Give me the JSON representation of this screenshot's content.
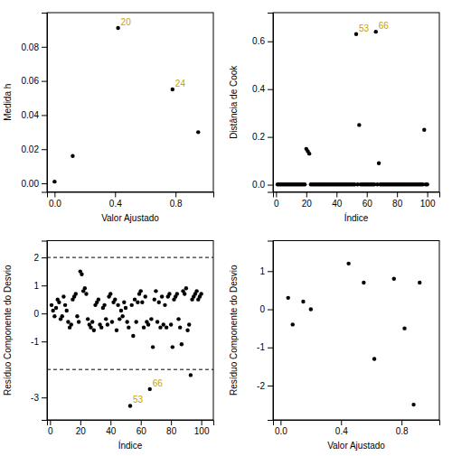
{
  "chart_data": [
    {
      "type": "scatter",
      "xlabel": "Valor Ajustado",
      "ylabel": "Medida h",
      "xlim": [
        -0.05,
        1.05
      ],
      "ylim": [
        -0.005,
        0.1
      ],
      "xticks": [
        {
          "value": 0.0,
          "label": "0.0"
        },
        0.4,
        0.8
      ],
      "yticks": [
        {
          "value": 0.0,
          "label": "0.00"
        },
        0.02,
        0.04,
        0.06,
        0.08
      ],
      "color": "#000000",
      "x": [
        0.0,
        0.12,
        0.42,
        0.78,
        0.95
      ],
      "values": [
        0.001,
        0.016,
        0.091,
        0.055,
        0.03
      ],
      "annotations": [
        {
          "text": "20",
          "x": 0.42,
          "y": 0.091,
          "color": "#C8A000"
        },
        {
          "text": "24",
          "x": 0.78,
          "y": 0.055,
          "color": "#C8A000"
        }
      ]
    },
    {
      "type": "scatter",
      "xlabel": "Índice",
      "ylabel": "Distância de Cook",
      "xlim": [
        -2,
        108
      ],
      "ylim": [
        -0.03,
        0.72
      ],
      "xticks": [
        0,
        20,
        40,
        60,
        80,
        100
      ],
      "yticks": [
        {
          "value": 0.0,
          "label": "0.0"
        },
        0.2,
        0.4,
        0.6
      ],
      "color": "#000000",
      "x": [
        1,
        2,
        3,
        4,
        5,
        6,
        7,
        8,
        9,
        10,
        11,
        12,
        13,
        14,
        15,
        16,
        17,
        18,
        19,
        20,
        21,
        22,
        23,
        24,
        25,
        26,
        27,
        28,
        29,
        30,
        31,
        32,
        33,
        34,
        35,
        36,
        37,
        38,
        39,
        40,
        41,
        42,
        43,
        44,
        45,
        46,
        47,
        48,
        49,
        50,
        51,
        52,
        53,
        54,
        55,
        56,
        57,
        58,
        59,
        60,
        61,
        62,
        63,
        64,
        65,
        66,
        67,
        68,
        69,
        70,
        71,
        72,
        73,
        74,
        75,
        76,
        77,
        78,
        79,
        80,
        81,
        82,
        83,
        84,
        85,
        86,
        87,
        88,
        89,
        90,
        91,
        92,
        93,
        94,
        95,
        96,
        97,
        98,
        99,
        100
      ],
      "values": [
        0.001,
        0.001,
        0.001,
        0.001,
        0.001,
        0.001,
        0.001,
        0.001,
        0.001,
        0.001,
        0.001,
        0.001,
        0.001,
        0.001,
        0.001,
        0.001,
        0.001,
        0.001,
        0.001,
        0.15,
        0.14,
        0.13,
        0.001,
        0.001,
        0.001,
        0.001,
        0.001,
        0.001,
        0.001,
        0.001,
        0.001,
        0.001,
        0.001,
        0.001,
        0.001,
        0.001,
        0.001,
        0.001,
        0.001,
        0.001,
        0.001,
        0.001,
        0.001,
        0.001,
        0.001,
        0.001,
        0.001,
        0.001,
        0.001,
        0.001,
        0.001,
        0.001,
        0.63,
        0.001,
        0.25,
        0.001,
        0.001,
        0.001,
        0.001,
        0.001,
        0.001,
        0.001,
        0.001,
        0.001,
        0.001,
        0.64,
        0.001,
        0.09,
        0.001,
        0.001,
        0.001,
        0.001,
        0.001,
        0.001,
        0.001,
        0.001,
        0.001,
        0.001,
        0.001,
        0.001,
        0.001,
        0.001,
        0.001,
        0.001,
        0.001,
        0.001,
        0.001,
        0.001,
        0.001,
        0.001,
        0.001,
        0.001,
        0.001,
        0.001,
        0.001,
        0.001,
        0.001,
        0.23,
        0.001,
        0.001
      ],
      "annotations": [
        {
          "text": "53",
          "x": 53,
          "y": 0.63,
          "color": "#C8A000"
        },
        {
          "text": "66",
          "x": 66,
          "y": 0.64,
          "color": "#C8A000"
        }
      ]
    },
    {
      "type": "scatter",
      "xlabel": "Índice",
      "ylabel": "Resíduo Componente do Desvio",
      "xlim": [
        -2,
        108
      ],
      "ylim": [
        -3.8,
        2.6
      ],
      "xticks": [
        0,
        20,
        40,
        60,
        80,
        100
      ],
      "yticks": [
        -3,
        -1,
        0,
        1,
        2
      ],
      "color": "#000000",
      "hlines": [
        2.0,
        -2.0
      ],
      "x": [
        1,
        2,
        3,
        4,
        5,
        6,
        7,
        8,
        9,
        10,
        11,
        12,
        13,
        14,
        15,
        16,
        17,
        18,
        19,
        20,
        21,
        22,
        23,
        24,
        25,
        26,
        27,
        28,
        29,
        30,
        31,
        32,
        33,
        34,
        35,
        36,
        37,
        38,
        39,
        40,
        41,
        42,
        43,
        44,
        45,
        46,
        47,
        48,
        49,
        50,
        51,
        52,
        53,
        54,
        55,
        56,
        57,
        58,
        59,
        60,
        61,
        62,
        63,
        64,
        65,
        66,
        67,
        68,
        69,
        70,
        71,
        72,
        73,
        74,
        75,
        76,
        77,
        78,
        79,
        80,
        81,
        82,
        83,
        84,
        85,
        86,
        87,
        88,
        89,
        90,
        91,
        92,
        93,
        94,
        95,
        96,
        97,
        98,
        99,
        100
      ],
      "values": [
        0.3,
        0.1,
        -0.1,
        0.2,
        0.5,
        0.4,
        -0.2,
        -0.1,
        0.6,
        0.3,
        0.1,
        -0.3,
        -0.5,
        -0.4,
        0.5,
        0.6,
        0.7,
        -0.1,
        -0.3,
        1.5,
        1.4,
        0.8,
        0.9,
        0.7,
        -0.2,
        -0.4,
        -0.5,
        -0.3,
        -0.6,
        0.3,
        0.4,
        0.5,
        -0.4,
        -0.5,
        0.2,
        0.3,
        -0.2,
        -0.4,
        0.6,
        0.7,
        -0.3,
        0.4,
        0.5,
        -0.6,
        0.3,
        -0.2,
        0.1,
        -0.1,
        0.4,
        0.2,
        -0.3,
        -0.5,
        -3.3,
        0.3,
        -0.8,
        0.5,
        -0.3,
        0.4,
        0.7,
        0.8,
        0.4,
        -0.5,
        0.6,
        -0.3,
        -0.4,
        -2.7,
        -0.2,
        -1.2,
        0.5,
        0.8,
        -0.3,
        0.4,
        -0.5,
        0.6,
        -0.4,
        0.3,
        -0.5,
        0.6,
        0.7,
        -0.4,
        -1.2,
        0.5,
        0.6,
        0.7,
        -0.2,
        -0.5,
        -1.1,
        0.8,
        0.7,
        0.9,
        -0.6,
        -0.4,
        -2.2,
        0.5,
        0.6,
        0.7,
        0.8,
        0.5,
        0.6,
        0.7
      ],
      "annotations": [
        {
          "text": "53",
          "x": 53,
          "y": -3.3,
          "color": "#C8A000"
        },
        {
          "text": "66",
          "x": 66,
          "y": -2.7,
          "color": "#C8A000"
        }
      ]
    },
    {
      "type": "scatter",
      "xlabel": "Valor Ajustado",
      "ylabel": "Resíduo Componente do Desvio",
      "xlim": [
        -0.05,
        1.05
      ],
      "ylim": [
        -2.9,
        1.8
      ],
      "xticks": [
        {
          "value": 0.0,
          "label": "0.0"
        },
        0.4,
        0.8
      ],
      "yticks": [
        -2,
        -1,
        0,
        1
      ],
      "color": "#000000",
      "x": [
        0.05,
        0.08,
        0.15,
        0.2,
        0.45,
        0.55,
        0.62,
        0.75,
        0.82,
        0.88,
        0.92
      ],
      "values": [
        0.3,
        -0.4,
        0.2,
        0.0,
        1.2,
        0.7,
        -1.3,
        0.8,
        -0.5,
        -2.5,
        0.7
      ]
    }
  ]
}
